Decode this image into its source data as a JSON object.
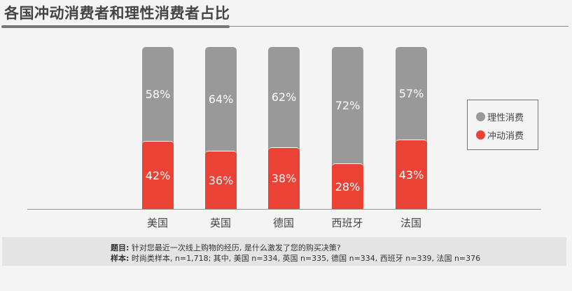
{
  "title": "各国冲动消费者和理性消费者占比",
  "legend": [
    {
      "label": "理性消费",
      "color": "#999999"
    },
    {
      "label": "冲动消费",
      "color": "#ea4335"
    }
  ],
  "note": {
    "question_label": "题目:",
    "question_text": "针对您最近一次线上购物的经历, 是什么激发了您的购买决策?",
    "sample_label": "样本:",
    "sample_text": "时尚类样本, n=1,718; 其中, 美国 n=334, 英国 n=335, 德国 n=334, 西班牙 n=339, 法国 n=376"
  },
  "bars": [
    {
      "country": "美国",
      "rational_label": "58%",
      "impulse_label": "42%"
    },
    {
      "country": "英国",
      "rational_label": "64%",
      "impulse_label": "36%"
    },
    {
      "country": "德国",
      "rational_label": "62%",
      "impulse_label": "38%"
    },
    {
      "country": "西班牙",
      "rational_label": "72%",
      "impulse_label": "28%"
    },
    {
      "country": "法国",
      "rational_label": "57%",
      "impulse_label": "43%"
    }
  ],
  "chart_data": {
    "type": "bar",
    "stacked": true,
    "percent": true,
    "title": "各国冲动消费者和理性消费者占比",
    "categories": [
      "美国",
      "英国",
      "德国",
      "西班牙",
      "法国"
    ],
    "series": [
      {
        "name": "冲动消费",
        "color": "#ea4335",
        "values": [
          42,
          36,
          38,
          28,
          43
        ]
      },
      {
        "name": "理性消费",
        "color": "#999999",
        "values": [
          58,
          64,
          62,
          72,
          57
        ]
      }
    ],
    "xlabel": "",
    "ylabel": "",
    "ylim": [
      0,
      100
    ],
    "grid": false,
    "legend_position": "right"
  }
}
